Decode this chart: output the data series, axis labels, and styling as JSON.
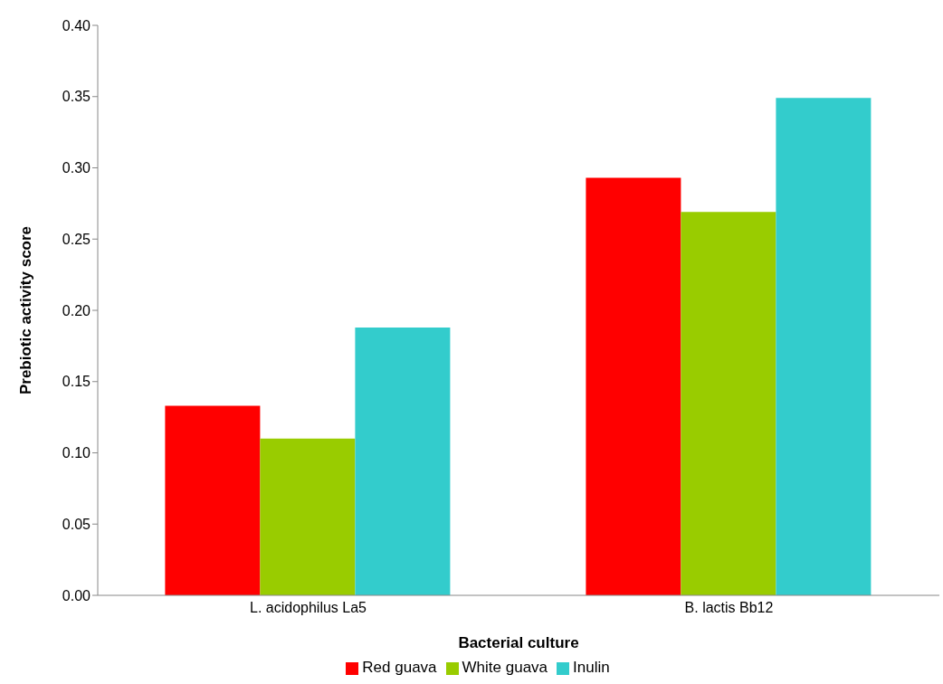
{
  "chart_data": {
    "type": "bar",
    "xlabel": "Bacterial culture",
    "ylabel": "Prebiotic activity score",
    "categories": [
      "L. acidophilus La5",
      "B. lactis Bb12"
    ],
    "series": [
      {
        "name": "Red guava",
        "color": "#ff0000",
        "values": [
          0.133,
          0.293
        ]
      },
      {
        "name": "White guava",
        "color": "#99cc00",
        "values": [
          0.11,
          0.269
        ]
      },
      {
        "name": "Inulin",
        "color": "#33cccc",
        "values": [
          0.188,
          0.349
        ]
      }
    ],
    "ylim": [
      0,
      0.4
    ],
    "yticks": [
      {
        "value": 0,
        "label": "0.00"
      },
      {
        "value": 0.05,
        "label": "0.05"
      },
      {
        "value": 0.1,
        "label": "0.10"
      },
      {
        "value": 0.15,
        "label": "0.15"
      },
      {
        "value": 0.2,
        "label": "0.20"
      },
      {
        "value": 0.25,
        "label": "0.25"
      },
      {
        "value": 0.3,
        "label": "0.30"
      },
      {
        "value": 0.35,
        "label": "0.35"
      },
      {
        "value": 0.4,
        "label": "0.40"
      }
    ],
    "grid": false,
    "legend": "bottom"
  }
}
